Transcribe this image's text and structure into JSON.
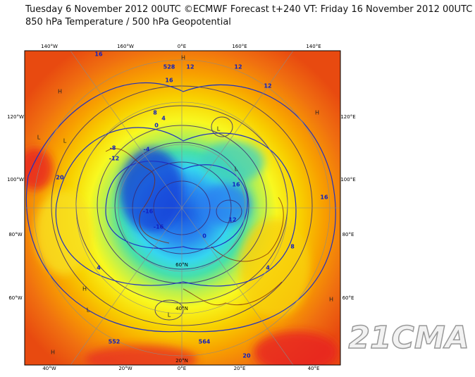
{
  "header": {
    "line1": "Tuesday 6 November 2012 00UTC ©ECMWF Forecast t+240 VT: Friday 16 November 2012 00UTC",
    "line2": "850 hPa Temperature / 500 hPa Geopotential"
  },
  "map": {
    "top_labels": [
      "140°W",
      "160°W",
      "0°E",
      "160°E",
      "140°E"
    ],
    "bottom_labels": [
      "40°W",
      "20°W",
      "0°E",
      "20°E",
      "40°E"
    ],
    "left_labels": [
      "120°W",
      "100°W",
      "80°W",
      "60°W"
    ],
    "right_labels": [
      "120°E",
      "100°E",
      "80°E",
      "60°E"
    ],
    "lat_labels": [
      "20°N",
      "40°N",
      "60°N"
    ],
    "contour_labels": [
      "16",
      "12",
      "16",
      "12",
      "8",
      "4",
      "0",
      "-4",
      "-8",
      "-12",
      "-16",
      "20",
      "12",
      "8",
      "4",
      "16",
      "12",
      "16",
      "20",
      "552",
      "528",
      "564",
      "-16",
      "0",
      "4"
    ],
    "pressure_labels": [
      "H",
      "L",
      "H",
      "L",
      "L",
      "H",
      "L",
      "H",
      "L",
      "H",
      "L",
      "H"
    ]
  },
  "watermark": "21CMA"
}
